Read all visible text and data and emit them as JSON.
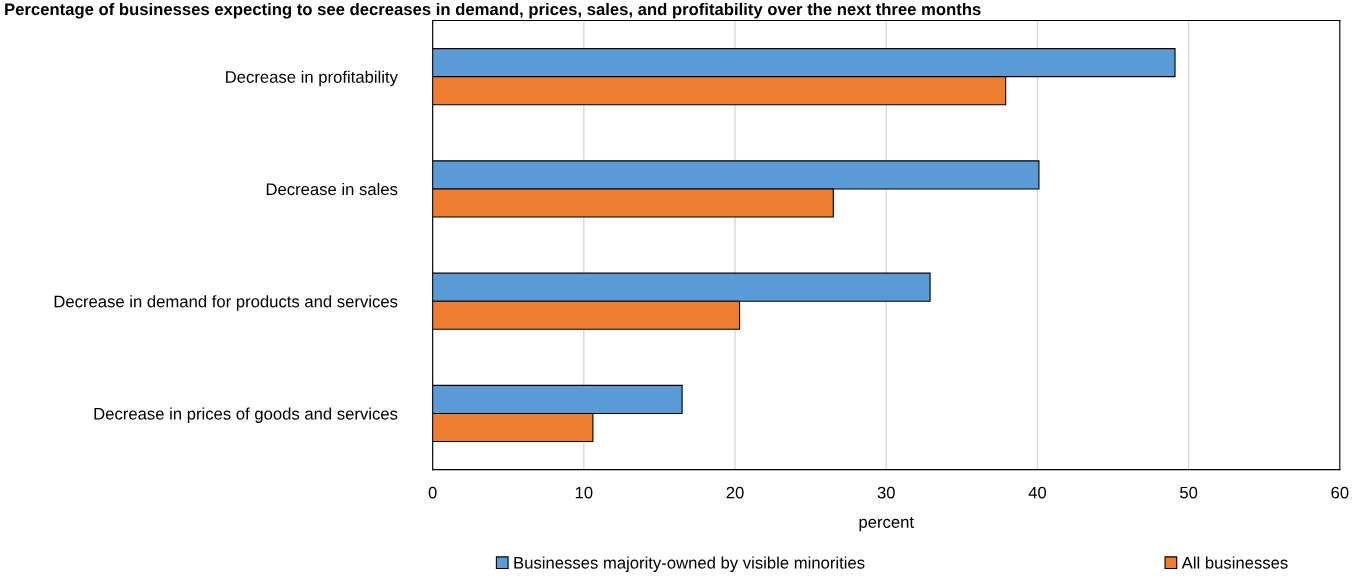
{
  "chart_data": {
    "type": "bar",
    "orientation": "horizontal",
    "title": "Percentage of businesses expecting to see decreases in demand, prices, sales, and profitability over the next three months",
    "xlabel": "percent",
    "categories": [
      "Decrease in profitability",
      "Decrease in sales",
      "Decrease in demand for products and services",
      "Decrease in prices of goods and services"
    ],
    "series": [
      {
        "name": "Businesses majority-owned by visible minorities",
        "color": "#5b9bd5",
        "values": [
          49.1,
          40.1,
          32.9,
          16.5
        ]
      },
      {
        "name": "All businesses",
        "color": "#ed7d31",
        "values": [
          37.9,
          26.5,
          20.3,
          10.6
        ]
      }
    ],
    "xlim": [
      0,
      60
    ],
    "xticks": [
      0,
      10,
      20,
      30,
      40,
      50,
      60
    ],
    "grid": "x",
    "legend": "bottom"
  }
}
